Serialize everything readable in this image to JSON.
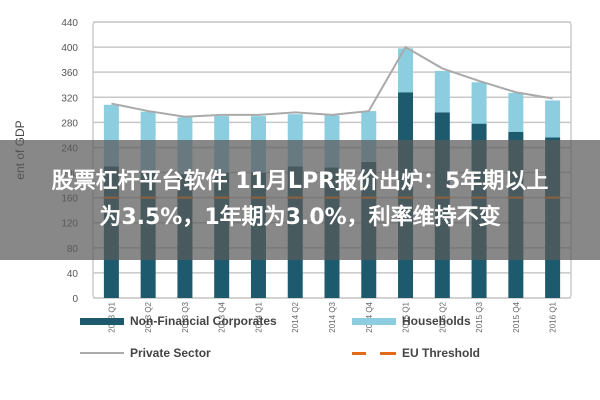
{
  "overlay": {
    "line1": "股票杠杆平台软件 11月LPR报价出炉：5年期以上",
    "line2": "为3.5%，1年期为3.0%，利率维持不变"
  },
  "chart_data": {
    "type": "bar",
    "stacked": true,
    "title": "",
    "xlabel": "",
    "ylabel": "Per Cent of GDP",
    "ylabel_visible": "ent of GDP",
    "ylim": [
      0,
      440
    ],
    "yticks": [
      0,
      40,
      80,
      120,
      160,
      200,
      240,
      280,
      320,
      360,
      400,
      440
    ],
    "grid": true,
    "legend_position": "bottom",
    "categories": [
      "2013 Q1",
      "2013 Q2",
      "2013 Q3",
      "2013 Q4",
      "2014 Q1",
      "2014 Q2",
      "2014 Q3",
      "2014 Q4",
      "2015 Q1",
      "2015 Q2",
      "2015 Q3",
      "2015 Q4",
      "2016 Q1"
    ],
    "series": [
      {
        "name": "Non-Financial Corporates",
        "kind": "bar",
        "color": "#1d5a6e",
        "values": [
          210,
          203,
          197,
          200,
          200,
          210,
          208,
          217,
          328,
          296,
          278,
          265,
          256
        ]
      },
      {
        "name": "Households",
        "kind": "bar",
        "color": "#8ccde0",
        "values": [
          98,
          94,
          91,
          90,
          90,
          83,
          83,
          81,
          70,
          66,
          66,
          62,
          59
        ]
      },
      {
        "name": "Private Sector",
        "kind": "line",
        "color": "#aaaaaa",
        "values": [
          310,
          298,
          289,
          292,
          292,
          296,
          292,
          298,
          400,
          366,
          346,
          328,
          318
        ]
      },
      {
        "name": "EU Threshold",
        "kind": "dashed-line",
        "color": "#e26b1a",
        "values": [
          160,
          160,
          160,
          160,
          160,
          160,
          160,
          160,
          160,
          160,
          160,
          160,
          160
        ]
      }
    ]
  },
  "legend": {
    "items": [
      {
        "label": "Non-Financial Corporates"
      },
      {
        "label": "Households"
      },
      {
        "label": "Private Sector"
      },
      {
        "label": "EU Threshold"
      }
    ]
  }
}
